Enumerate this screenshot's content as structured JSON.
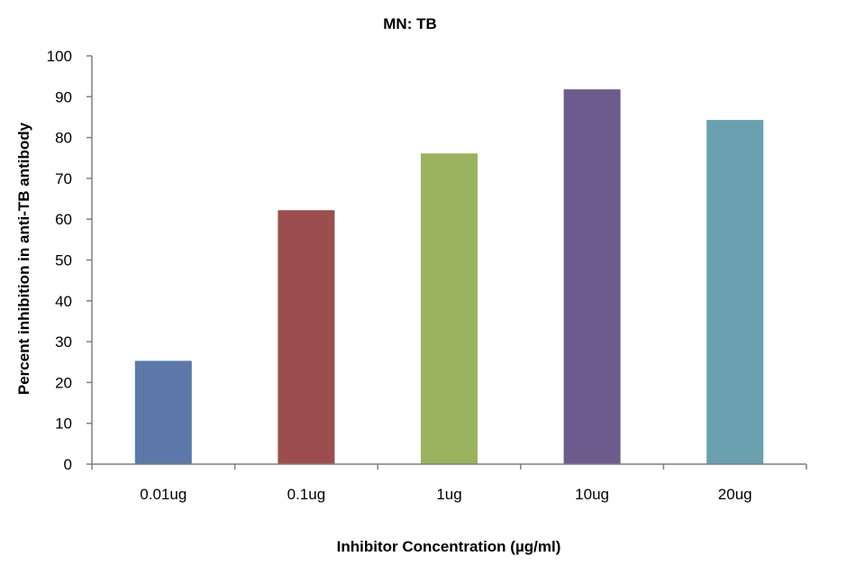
{
  "chart_data": {
    "type": "bar",
    "title": "MN: TB",
    "xlabel": "Inhibitor Concentration (µg/ml)",
    "ylabel": "Percent  inhibition  in anti-TB antibody",
    "categories": [
      "0.01ug",
      "0.1ug",
      "1ug",
      "10ug",
      "20ug"
    ],
    "values": [
      25.3,
      62.2,
      76.1,
      91.8,
      84.3
    ],
    "colors": [
      "#5b78a8",
      "#9c4e4e",
      "#9bb25e",
      "#6e5b8e",
      "#6aa0b0"
    ],
    "ylim": [
      0,
      100
    ],
    "yticks": [
      0,
      10,
      20,
      30,
      40,
      50,
      60,
      70,
      80,
      90,
      100
    ],
    "grid": false,
    "legend": "none"
  }
}
